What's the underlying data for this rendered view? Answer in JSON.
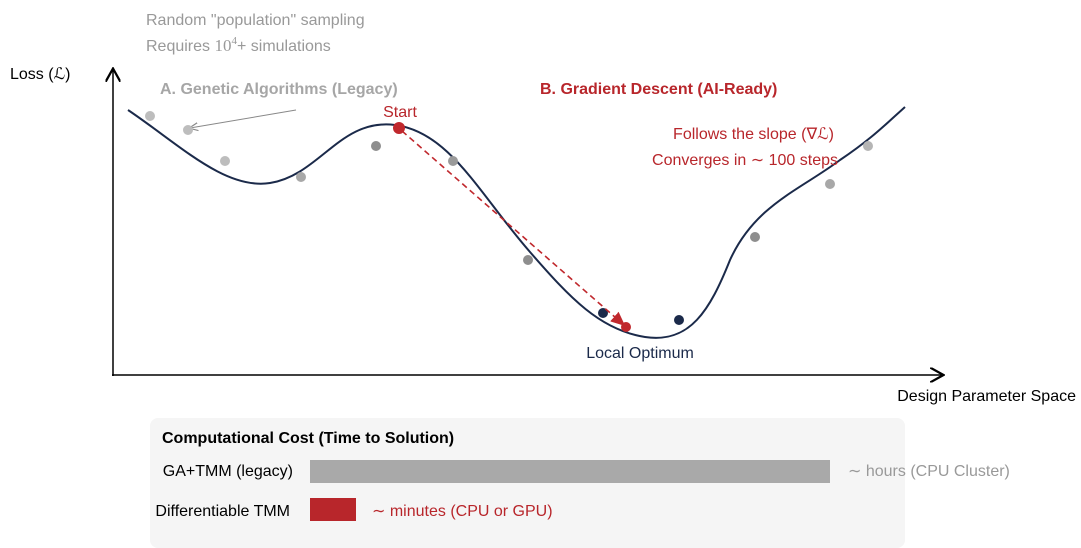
{
  "annotation": {
    "line1": "Random \"population\" sampling",
    "line2_prefix": "Requires ",
    "line2_base": "10",
    "line2_exp": "4",
    "line2_suffix": "+ simulations"
  },
  "axes": {
    "y_label": "Loss (ℒ)",
    "x_label": "Design Parameter Space"
  },
  "methods": {
    "a": "A. Genetic Algorithms (Legacy)",
    "b": "B. Gradient Descent (AI-Ready)"
  },
  "points": {
    "start": "Start",
    "optimum": "Local Optimum"
  },
  "gradient_note": {
    "line1": "Follows the slope (∇ℒ)",
    "line2": "Converges in ∼ 100 steps"
  },
  "cost_panel": {
    "title": "Computational Cost (Time to Solution)",
    "rows": [
      {
        "label": "GA+TMM (legacy)",
        "note": "∼ hours (CPU Cluster)"
      },
      {
        "label": "Differentiable TMM",
        "note": "∼ minutes (CPU or GPU)"
      }
    ]
  }
}
